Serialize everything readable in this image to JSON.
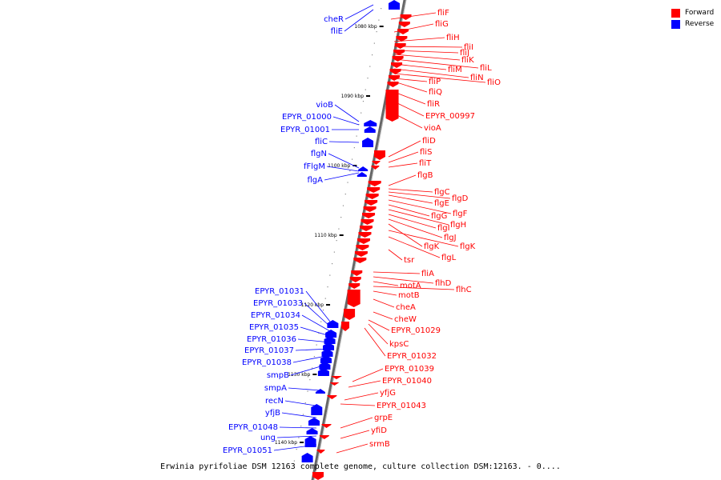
{
  "caption": "Erwinia pyrifoliae DSM 12163 complete genome, culture collection DSM:12163. - 0....",
  "legend": [
    {
      "label": "Forward",
      "color": "#ff0000"
    },
    {
      "label": "Reverse",
      "color": "#0000ff"
    }
  ],
  "colors": {
    "forward": "#ff0000",
    "reverse": "#0000ff",
    "backbone": "#777777"
  },
  "ticks": [
    "1080 kbp",
    "1090 kbp",
    "1100 kbp",
    "1110 kbp",
    "1120 kbp",
    "1130 kbp",
    "1140 kbp"
  ],
  "forward_labels": [
    "fliF",
    "fliG",
    "fliH",
    "fliI",
    "fliJ",
    "fliK",
    "fliL",
    "fliM",
    "fliN",
    "fliO",
    "fliP",
    "fliQ",
    "fliR",
    "EPYR_00997",
    "vioA",
    "fliD",
    "fliS",
    "fliT",
    "flgB",
    "flgC",
    "flgD",
    "flgE",
    "flgF",
    "flgG",
    "flgH",
    "flgI",
    "flgJ",
    "flgK",
    "flgK",
    "flgL",
    "tsr",
    "fliA",
    "flhD",
    "motA",
    "flhC",
    "motB",
    "cheA",
    "cheW",
    "EPYR_01029",
    "kpsC",
    "EPYR_01032",
    "EPYR_01039",
    "EPYR_01040",
    "yfjG",
    "EPYR_01043",
    "grpE",
    "yfiD",
    "srmB"
  ],
  "reverse_labels": [
    "cheR",
    "fliE",
    "vioB",
    "EPYR_01000",
    "EPYR_01001",
    "fliC",
    "flgN",
    "fFlgM",
    "flgA",
    "EPYR_01031",
    "EPYR_01033",
    "EPYR_01034",
    "EPYR_01035",
    "EPYR_01036",
    "EPYR_01037",
    "EPYR_01038",
    "smpB",
    "smpA",
    "recN",
    "yfjB",
    "EPYR_01048",
    "ung",
    "EPYR_01051"
  ]
}
